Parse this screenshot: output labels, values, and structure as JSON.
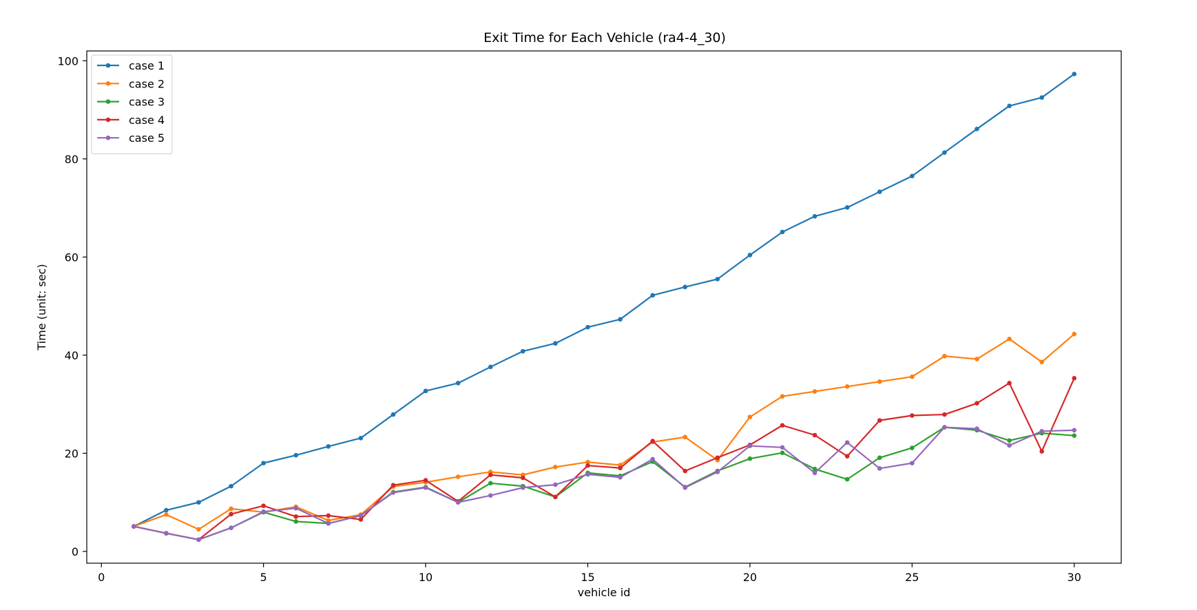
{
  "chart_data": {
    "type": "line",
    "title": "Exit Time for Each Vehicle (ra4-4_30)",
    "xlabel": "vehicle id",
    "ylabel": "Time (unit: sec)",
    "xlim": [
      -0.45,
      31.45
    ],
    "ylim": [
      -2.4,
      102.0
    ],
    "xticks": [
      0,
      5,
      10,
      15,
      20,
      25,
      30
    ],
    "yticks": [
      0,
      20,
      40,
      60,
      80,
      100
    ],
    "grid": false,
    "legend_position": "top-left",
    "x": [
      1,
      2,
      3,
      4,
      5,
      6,
      7,
      8,
      9,
      10,
      11,
      12,
      13,
      14,
      15,
      16,
      17,
      18,
      19,
      20,
      21,
      22,
      23,
      24,
      25,
      26,
      27,
      28,
      29,
      30
    ],
    "series": [
      {
        "name": "case 1",
        "color": "#1f77b4",
        "values": [
          5.1,
          8.4,
          10.0,
          13.3,
          18.0,
          19.6,
          21.4,
          23.1,
          27.9,
          32.7,
          34.3,
          37.6,
          40.8,
          42.4,
          45.7,
          47.3,
          52.2,
          53.9,
          55.5,
          60.4,
          65.1,
          68.3,
          70.1,
          73.3,
          76.5,
          81.3,
          86.1,
          90.8,
          92.5,
          97.3
        ]
      },
      {
        "name": "case 2",
        "color": "#ff7f0e",
        "values": [
          5.1,
          7.5,
          4.5,
          8.7,
          8.0,
          9.1,
          6.3,
          7.5,
          13.2,
          14.1,
          15.2,
          16.2,
          15.6,
          17.2,
          18.2,
          17.6,
          22.3,
          23.3,
          18.6,
          27.4,
          31.6,
          32.6,
          33.6,
          34.6,
          35.6,
          39.8,
          39.2,
          43.3,
          38.6,
          44.3
        ]
      },
      {
        "name": "case 3",
        "color": "#2ca02c",
        "values": [
          5.1,
          3.7,
          2.4,
          4.8,
          8.0,
          6.1,
          5.7,
          7.3,
          12.1,
          13.1,
          10.0,
          13.9,
          13.3,
          11.1,
          16.0,
          15.4,
          18.3,
          13.1,
          16.4,
          18.9,
          20.1,
          16.8,
          14.7,
          19.1,
          21.1,
          25.3,
          24.7,
          22.6,
          24.1,
          23.6
        ]
      },
      {
        "name": "case 4",
        "color": "#d62728",
        "values": [
          5.1,
          3.7,
          2.4,
          7.6,
          9.3,
          7.1,
          7.3,
          6.5,
          13.5,
          14.5,
          10.2,
          15.6,
          15.0,
          11.1,
          17.5,
          17.0,
          22.5,
          16.4,
          19.1,
          21.7,
          25.7,
          23.7,
          19.4,
          26.7,
          27.7,
          27.9,
          30.2,
          34.3,
          20.4,
          35.3
        ]
      },
      {
        "name": "case 5",
        "color": "#9467bd",
        "values": [
          5.1,
          3.7,
          2.4,
          4.8,
          8.1,
          8.8,
          5.7,
          7.3,
          12.0,
          13.0,
          10.0,
          11.4,
          13.0,
          13.6,
          15.7,
          15.1,
          18.8,
          13.0,
          16.2,
          21.5,
          21.2,
          16.0,
          22.2,
          16.9,
          18.0,
          25.3,
          25.0,
          21.6,
          24.5,
          24.7
        ]
      }
    ]
  }
}
